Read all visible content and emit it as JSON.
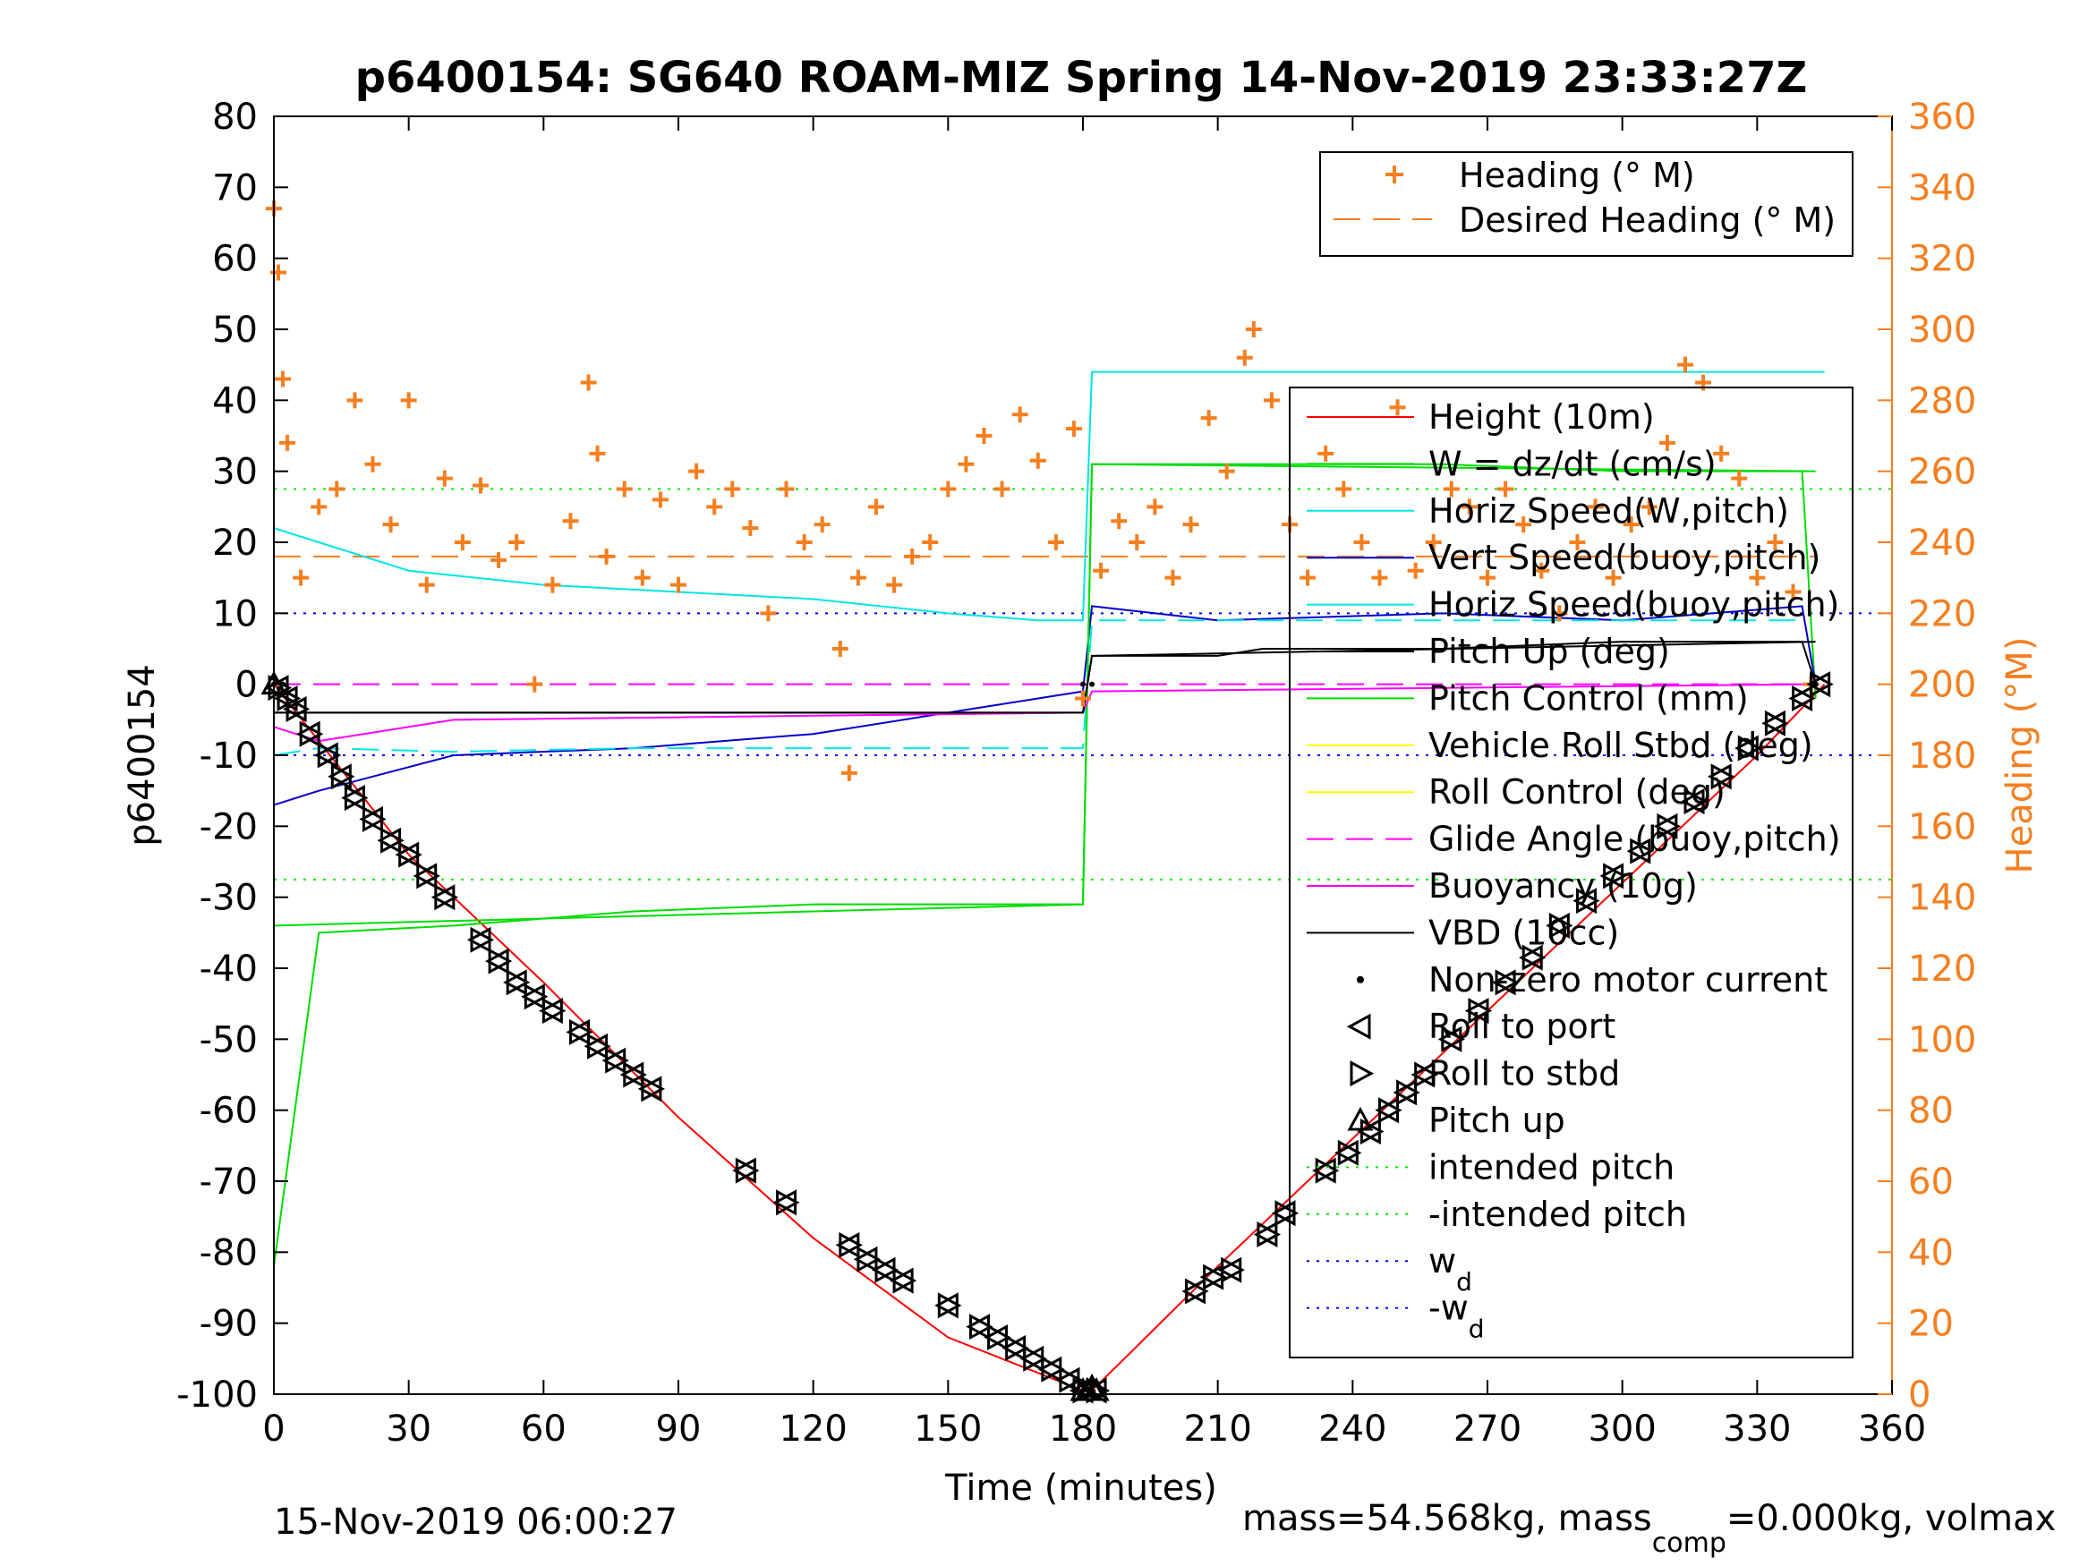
{
  "title": "p6400154: SG640 ROAM-MIZ Spring 14-Nov-2019 23:33:27Z",
  "footer_left": "15-Nov-2019 06:00:27",
  "footer_right": {
    "part1": "mass=54.568kg, mass",
    "sub": "comp",
    "part2": "=0.000kg, volmax"
  },
  "colors": {
    "heading": "#F47F20",
    "height": "#FF0000",
    "w": "#00DD00",
    "horiz_speed": "#00E5E5",
    "vert_speed": "#0000CC",
    "pitch_up": "#000000",
    "pitch_control": "#00DD00",
    "roll": "#FFFF00",
    "glide": "#FF00FF",
    "intended_pitch": "#00EE00",
    "wd": "#0000FF"
  },
  "chart_data": {
    "type": "line",
    "xlabel": "Time (minutes)",
    "ylabel": "p6400154",
    "y2label": "Heading (°M)",
    "xlim": [
      0,
      360
    ],
    "ylim": [
      -100,
      80
    ],
    "y2lim": [
      0,
      360
    ],
    "x_ticks": [
      "0",
      "30",
      "60",
      "90",
      "120",
      "150",
      "180",
      "210",
      "240",
      "270",
      "300",
      "330",
      "360"
    ],
    "y_ticks": [
      "80",
      "70",
      "60",
      "50",
      "40",
      "30",
      "20",
      "10",
      "0",
      "-10",
      "-20",
      "-30",
      "-40",
      "-50",
      "-60",
      "-70",
      "-80",
      "-90",
      "-100"
    ],
    "y2_ticks": [
      "360",
      "340",
      "320",
      "300",
      "280",
      "260",
      "240",
      "220",
      "200",
      "180",
      "160",
      "140",
      "120",
      "100",
      "80",
      "60",
      "40",
      "20",
      "0"
    ],
    "grid": false,
    "legend_top": [
      {
        "label": "Heading (° M)",
        "style": "plus"
      },
      {
        "label": "Desired Heading (° M)",
        "style": "dash"
      }
    ],
    "legend_main": [
      {
        "label": "Height (10m)",
        "style": "line"
      },
      {
        "label": "W = dz/dt (cm/s)",
        "style": "line"
      },
      {
        "label": "Horiz Speed(W,pitch)",
        "style": "line"
      },
      {
        "label": "Vert Speed(buoy,pitch)",
        "style": "line"
      },
      {
        "label": "Horiz Speed(buoy,pitch)",
        "style": "line"
      },
      {
        "label": "Pitch Up (deg)",
        "style": "line"
      },
      {
        "label": "Pitch Control (mm)",
        "style": "line"
      },
      {
        "label": "Vehicle Roll Stbd (deg)",
        "style": "line"
      },
      {
        "label": "Roll Control (deg)",
        "style": "line"
      },
      {
        "label": "Glide Angle (buoy,pitch)",
        "style": "dash"
      },
      {
        "label": "Buoyancy (10g)",
        "style": "line"
      },
      {
        "label": "VBD (10cc)",
        "style": "line"
      },
      {
        "label": "Non-zero motor current",
        "style": "dot"
      },
      {
        "label": "Roll to port",
        "style": "tri-left"
      },
      {
        "label": "Roll to stbd",
        "style": "tri-right"
      },
      {
        "label": "Pitch up",
        "style": "tri-up"
      },
      {
        "label": "intended pitch",
        "style": "dotted"
      },
      {
        "label": "-intended pitch",
        "style": "dotted"
      },
      {
        "label": "w",
        "sub": "d",
        "style": "dotted"
      },
      {
        "label": "-w",
        "sub": "d",
        "style": "dotted"
      }
    ],
    "series": [
      {
        "name": "Height (10m)",
        "x": [
          0,
          30,
          60,
          90,
          120,
          150,
          180,
          182,
          210,
          240,
          270,
          300,
          330,
          345
        ],
        "y": [
          0,
          -24,
          -42,
          -61,
          -78,
          -92,
          -99.5,
          -99.5,
          -82,
          -64,
          -46,
          -28,
          -10,
          0
        ]
      },
      {
        "name": "W = dz/dt (cm/s)",
        "x": [
          0,
          10,
          40,
          80,
          120,
          150,
          180,
          182,
          220,
          260,
          300,
          340,
          343
        ],
        "y": [
          -82,
          -35,
          -34,
          -32,
          -31,
          -31,
          -31,
          31,
          31,
          31,
          30,
          30,
          -2
        ]
      },
      {
        "name": "Horiz Speed(W,pitch)",
        "x": [
          0,
          10,
          30,
          60,
          90,
          120,
          150,
          170,
          180,
          182,
          345
        ],
        "y": [
          22,
          20,
          16,
          14,
          13,
          12,
          10,
          9,
          9,
          44,
          44
        ]
      },
      {
        "name": "Vert Speed(buoy,pitch)",
        "x": [
          0,
          10,
          40,
          80,
          120,
          150,
          170,
          180,
          182,
          210,
          260,
          300,
          340,
          343
        ],
        "y": [
          -17,
          -15,
          -10,
          -9,
          -7,
          -4,
          -2,
          -1,
          11,
          9,
          10,
          9,
          11,
          0
        ]
      },
      {
        "name": "Horiz Speed(buoy,pitch)",
        "x": [
          0,
          10,
          40,
          80,
          120,
          150,
          180,
          182,
          340
        ],
        "y": [
          -10,
          -9,
          -9.5,
          -9,
          -9,
          -9,
          -9,
          9,
          9
        ]
      },
      {
        "name": "Pitch Up (deg)",
        "x": [
          0,
          180,
          182,
          210,
          220,
          260,
          300,
          340,
          343
        ],
        "y": [
          -4,
          -4,
          4,
          4,
          5,
          5,
          6,
          6,
          0
        ]
      },
      {
        "name": "Pitch Control (mm)",
        "x": [
          0,
          180,
          182,
          343
        ],
        "y": [
          -34,
          -31,
          31,
          30
        ]
      },
      {
        "name": "Glide Angle (buoy,pitch)",
        "x": [
          0,
          180,
          182,
          343
        ],
        "y": [
          0,
          0,
          0,
          0
        ]
      },
      {
        "name": "Buoyancy (10g)",
        "x": [
          0,
          10,
          40,
          180,
          182,
          343
        ],
        "y": [
          -6,
          -8,
          -5,
          -4,
          -1,
          0
        ]
      },
      {
        "name": "VBD (10cc)",
        "x": [
          0,
          180,
          182,
          343
        ],
        "y": [
          -4,
          -4,
          4,
          6
        ]
      },
      {
        "name": "intended pitch",
        "x": [
          0,
          360
        ],
        "y": [
          27.5,
          27.5
        ]
      },
      {
        "name": "-intended pitch",
        "x": [
          0,
          360
        ],
        "y": [
          -27.5,
          -27.5
        ]
      },
      {
        "name": "w_d",
        "x": [
          0,
          360
        ],
        "y": [
          10,
          10
        ]
      },
      {
        "name": "-w_d",
        "x": [
          0,
          360
        ],
        "y": [
          -10,
          -10
        ]
      },
      {
        "name": "Desired Heading (° M)",
        "x": [
          0,
          343
        ],
        "y2": [
          236,
          236
        ]
      },
      {
        "name": "Heading (° M)",
        "x": [
          0,
          1,
          2,
          3,
          6,
          10,
          14,
          18,
          22,
          26,
          30,
          34,
          38,
          42,
          46,
          50,
          54,
          58,
          62,
          66,
          70,
          72,
          74,
          78,
          82,
          86,
          90,
          94,
          98,
          102,
          106,
          110,
          114,
          118,
          122,
          126,
          128,
          130,
          134,
          138,
          142,
          146,
          150,
          154,
          158,
          162,
          166,
          170,
          174,
          178,
          180,
          184,
          188,
          192,
          196,
          200,
          204,
          208,
          212,
          216,
          218,
          222,
          226,
          230,
          234,
          238,
          242,
          246,
          250,
          254,
          258,
          262,
          266,
          270,
          274,
          278,
          282,
          286,
          290,
          294,
          298,
          302,
          306,
          310,
          314,
          318,
          322,
          326,
          330,
          334,
          338,
          342
        ],
        "y2": [
          334,
          316,
          286,
          268,
          230,
          250,
          255,
          280,
          262,
          245,
          280,
          228,
          258,
          240,
          256,
          235,
          240,
          200,
          228,
          246,
          285,
          265,
          236,
          255,
          230,
          252,
          228,
          260,
          250,
          255,
          244,
          220,
          255,
          240,
          245,
          210,
          175,
          230,
          250,
          228,
          236,
          240,
          255,
          262,
          270,
          255,
          276,
          263,
          240,
          272,
          196,
          232,
          246,
          240,
          250,
          230,
          245,
          275,
          260,
          292,
          300,
          280,
          245,
          230,
          265,
          255,
          240,
          230,
          278,
          232,
          240,
          255,
          250,
          230,
          255,
          245,
          232,
          220,
          240,
          250,
          230,
          245,
          250,
          268,
          290,
          285,
          265,
          258,
          230,
          240,
          226,
          200
        ]
      }
    ],
    "markers": {
      "roll_to_port": {
        "x": [
          1,
          3,
          5,
          8,
          12,
          15,
          18,
          22,
          26,
          30,
          34,
          38,
          46,
          50,
          54,
          58,
          62,
          68,
          72,
          76,
          80,
          84,
          105,
          114,
          128,
          132,
          136,
          140,
          150,
          157,
          161,
          165,
          169,
          173,
          177,
          180,
          183,
          205,
          209,
          213,
          221,
          225,
          234,
          239,
          244,
          248,
          252,
          256,
          262,
          268,
          274,
          280,
          286,
          292,
          298,
          304,
          310,
          316,
          322,
          328,
          334,
          340,
          344
        ],
        "y": [
          -0.5,
          -2,
          -3.5,
          -7,
          -10,
          -13,
          -16,
          -19,
          -22,
          -24,
          -27,
          -30,
          -36,
          -39,
          -42,
          -44,
          -46,
          -49,
          -51,
          -53,
          -55,
          -57,
          -68.5,
          -73,
          -79,
          -81,
          -82.5,
          -84,
          -87.5,
          -90.5,
          -92,
          -93.5,
          -95,
          -96.5,
          -98,
          -99.5,
          -99.5,
          -85.5,
          -83.5,
          -82.5,
          -77.5,
          -74.5,
          -68.5,
          -66,
          -63,
          -60,
          -57.5,
          -55,
          -50,
          -46,
          -42,
          -38.5,
          -34,
          -30.5,
          -27,
          -23.5,
          -20,
          -16.5,
          -13,
          -9,
          -5.5,
          -2,
          0
        ]
      },
      "pitch_up": {
        "x": [
          0,
          180,
          181,
          182,
          183
        ],
        "y": [
          0,
          -99.5,
          -99.5,
          -99,
          -99.5
        ]
      },
      "motor_current": {
        "x": [
          0,
          2,
          180,
          182,
          343
        ],
        "y": [
          0,
          0,
          0,
          0,
          0
        ]
      }
    }
  }
}
